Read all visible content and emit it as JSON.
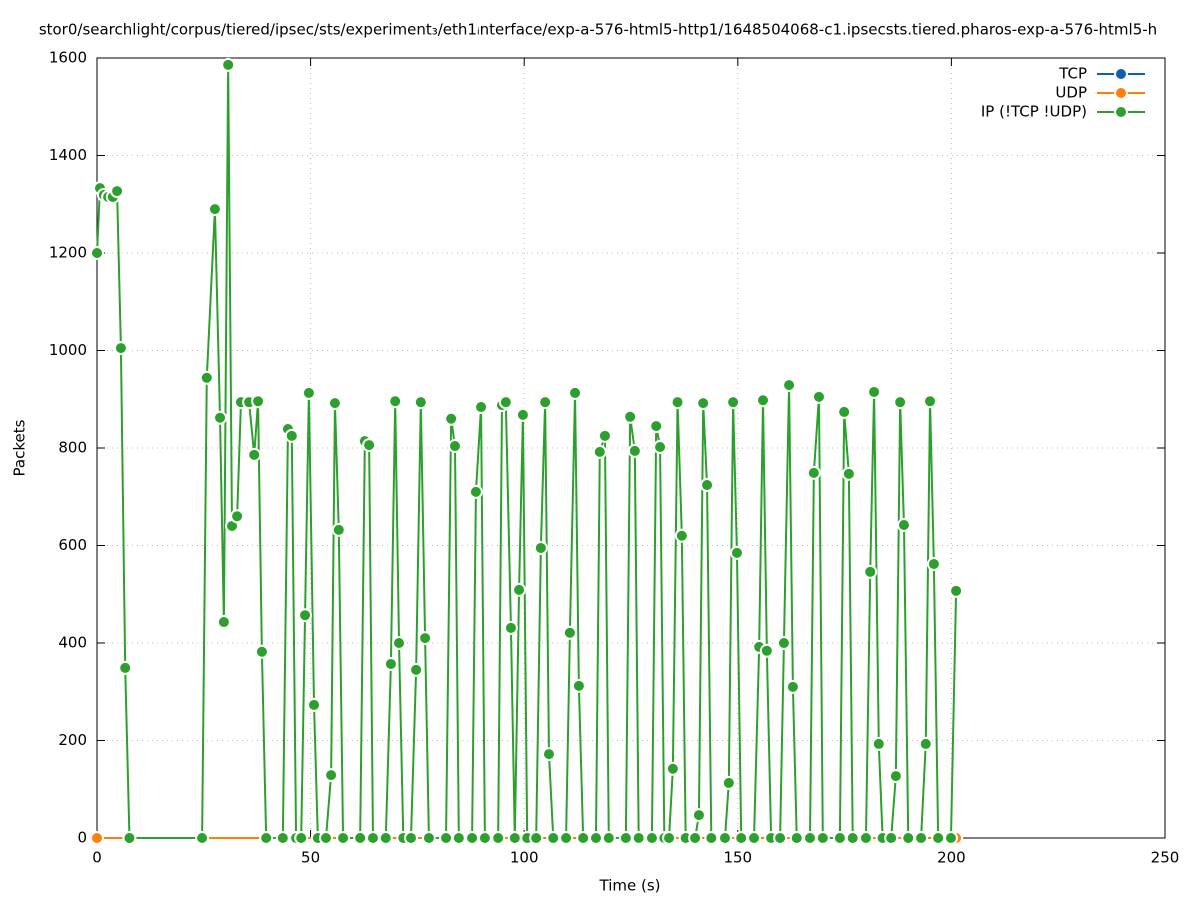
{
  "chart_data": {
    "type": "line",
    "title": "stor0/searchlight/corpus/tiered/ipsec/sts/experiment₃/eth1ᵢnterface/exp-a-576-html5-http1/1648504068-c1.ipsecsts.tiered.pharos-exp-a-576-html5-h",
    "x_label": "Time (s)",
    "y_label": "Packets",
    "xlim": [
      0,
      250
    ],
    "xticks": [
      0,
      50,
      100,
      150,
      200,
      250
    ],
    "ylim": [
      0,
      1600
    ],
    "yticks": [
      0,
      200,
      400,
      600,
      800,
      1000,
      1200,
      1400,
      1600
    ],
    "grid": true,
    "legend": "top-right",
    "series": [
      {
        "name": "TCP",
        "color": "#0b63b0",
        "x": [
          0,
          201.1
        ],
        "values": [
          0,
          0
        ]
      },
      {
        "name": "UDP",
        "color": "#ff7f0e",
        "x": [
          0,
          201.1
        ],
        "values": [
          0,
          0
        ]
      },
      {
        "name": "IP (!TCP  !UDP)",
        "color": "#2ca02c",
        "x": [
          0,
          0.7,
          1.6,
          2.6,
          3.7,
          4.7,
          5.6,
          6.6,
          7.6,
          24.6,
          25.7,
          27.6,
          28.8,
          29.7,
          30.7,
          31.6,
          32.8,
          33.7,
          35.6,
          36.8,
          37.7,
          38.6,
          39.6,
          43.5,
          44.7,
          45.6,
          46.6,
          47.8,
          48.7,
          49.6,
          50.8,
          51.7,
          53.6,
          54.8,
          55.7,
          56.6,
          57.6,
          61.6,
          62.7,
          63.7,
          64.6,
          67.6,
          68.8,
          69.8,
          70.7,
          71.7,
          73.5,
          74.7,
          75.8,
          76.8,
          77.7,
          81.7,
          82.9,
          83.8,
          84.7,
          87.8,
          88.7,
          89.9,
          90.8,
          93.9,
          94.8,
          95.7,
          96.9,
          97.8,
          98.8,
          99.7,
          100.7,
          102.8,
          103.9,
          104.9,
          105.8,
          106.8,
          109.8,
          110.7,
          111.9,
          112.8,
          113.8,
          116.8,
          117.7,
          118.9,
          119.8,
          123.8,
          124.8,
          125.9,
          126.8,
          129.9,
          130.9,
          131.8,
          132.8,
          133.9,
          134.8,
          135.9,
          136.9,
          137.8,
          140,
          140.9,
          141.9,
          142.8,
          143.8,
          147,
          147.9,
          148.9,
          149.8,
          150.8,
          153.8,
          155,
          155.9,
          156.8,
          157.8,
          159.9,
          160.8,
          162,
          162.9,
          163.8,
          166.9,
          167.8,
          169,
          169.9,
          173.9,
          174.9,
          176,
          176.9,
          180,
          181,
          181.9,
          183,
          183.9,
          185.9,
          187,
          188,
          188.9,
          189.9,
          192.9,
          194,
          195,
          195.9,
          196.9,
          199.9,
          201.1
        ],
        "values": [
          1200,
          1333,
          1319,
          1315,
          1315,
          1327,
          1005,
          349,
          0,
          0,
          944,
          1290,
          862,
          443,
          1586,
          640,
          660,
          894,
          894,
          786,
          896,
          382,
          0,
          0,
          839,
          825,
          0,
          0,
          457,
          913,
          273,
          0,
          0,
          129,
          892,
          632,
          0,
          0,
          814,
          806,
          0,
          0,
          357,
          896,
          400,
          0,
          0,
          345,
          894,
          410,
          0,
          0,
          860,
          804,
          0,
          0,
          710,
          884,
          0,
          0,
          888,
          894,
          431,
          0,
          509,
          868,
          0,
          0,
          595,
          894,
          172,
          0,
          0,
          421,
          913,
          312,
          0,
          0,
          792,
          825,
          0,
          0,
          864,
          794,
          0,
          0,
          845,
          802,
          0,
          0,
          142,
          894,
          620,
          0,
          0,
          47,
          892,
          724,
          0,
          0,
          113,
          894,
          585,
          0,
          0,
          392,
          898,
          384,
          0,
          0,
          400,
          929,
          310,
          0,
          0,
          749,
          905,
          0,
          0,
          874,
          747,
          0,
          0,
          546,
          915,
          193,
          0,
          0,
          127,
          894,
          642,
          0,
          0,
          193,
          896,
          562,
          0,
          0,
          507
        ]
      }
    ]
  }
}
